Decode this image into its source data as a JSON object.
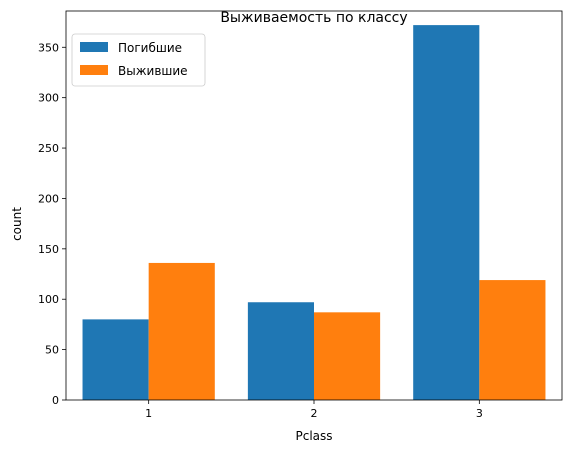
{
  "chart_data": {
    "type": "bar",
    "title": "Выживаемость по классу",
    "xlabel": "Pclass",
    "ylabel": "count",
    "categories": [
      "1",
      "2",
      "3"
    ],
    "series": [
      {
        "name": "Погибшие",
        "values": [
          80,
          97,
          372
        ],
        "color": "#1f77b4"
      },
      {
        "name": "Выжившие",
        "values": [
          136,
          87,
          119
        ],
        "color": "#ff7f0e"
      }
    ],
    "ylim": [
      0,
      386
    ],
    "yticks": [
      0,
      50,
      100,
      150,
      200,
      250,
      300,
      350
    ],
    "grid": false,
    "legend_position": "upper-left"
  }
}
